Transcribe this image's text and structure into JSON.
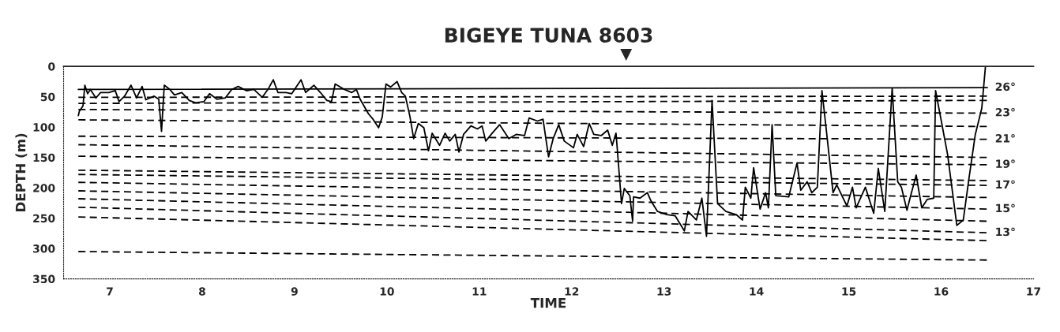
{
  "chart_data": {
    "type": "line",
    "title": "BIGEYE TUNA 8603",
    "xlabel": "TIME",
    "ylabel": "DEPTH (m)",
    "xlim": [
      6.5,
      17
    ],
    "xticks": [
      7,
      8,
      9,
      10,
      11,
      12,
      13,
      14,
      15,
      16,
      17
    ],
    "ylim": [
      350,
      0
    ],
    "yticks": [
      0,
      50,
      100,
      150,
      200,
      250,
      300,
      350
    ],
    "grid": false,
    "legend": false,
    "annotations": [
      "▼"
    ],
    "series": [
      {
        "color": "#000000",
        "line_style": "solid",
        "x": [
          6.66,
          6.67,
          6.71,
          6.73,
          6.76,
          6.79,
          6.85,
          6.9,
          6.99,
          7.06,
          7.1,
          7.16,
          7.23,
          7.29,
          7.35,
          7.39,
          7.48,
          7.53,
          7.56,
          7.59,
          7.65,
          7.7,
          7.78,
          7.86,
          7.93,
          8.02,
          8.08,
          8.16,
          8.25,
          8.32,
          8.39,
          8.48,
          8.56,
          8.65,
          8.72,
          8.77,
          8.82,
          8.91,
          8.97,
          9.07,
          9.12,
          9.21,
          9.28,
          9.35,
          9.4,
          9.44,
          9.54,
          9.62,
          9.67,
          9.71,
          9.8,
          9.85,
          9.91,
          9.95,
          9.99,
          10.04,
          10.11,
          10.16,
          10.2,
          10.25,
          10.29,
          10.34,
          10.4,
          10.45,
          10.49,
          10.57,
          10.63,
          10.68,
          10.74,
          10.78,
          10.83,
          10.91,
          10.98,
          11.03,
          11.07,
          11.14,
          11.22,
          11.32,
          11.4,
          11.49,
          11.54,
          11.63,
          11.69,
          11.75,
          11.8,
          11.86,
          11.92,
          12.02,
          12.06,
          12.13,
          12.19,
          12.24,
          12.32,
          12.39,
          12.44,
          12.48,
          12.49,
          12.54,
          12.57,
          12.63,
          12.66,
          12.67,
          12.74,
          12.82,
          12.86,
          12.93,
          13.03,
          13.12,
          13.22,
          13.26,
          13.35,
          13.41,
          13.46,
          13.52,
          13.58,
          13.67,
          13.78,
          13.85,
          13.88,
          13.94,
          13.97,
          14.04,
          14.1,
          14.13,
          14.17,
          14.21,
          14.35,
          14.44,
          14.48,
          14.55,
          14.6,
          14.66,
          14.71,
          14.77,
          14.83,
          14.87,
          14.98,
          15.04,
          15.08,
          15.18,
          15.27,
          15.32,
          15.39,
          15.47,
          15.53,
          15.57,
          15.63,
          15.67,
          15.73,
          15.79,
          15.85,
          15.92,
          15.94,
          16.07,
          16.17,
          16.24,
          16.3,
          16.37,
          16.44,
          16.48
        ],
        "values": [
          81,
          74,
          65,
          31,
          45,
          38,
          52,
          43,
          43,
          40,
          58,
          49,
          31,
          52,
          33,
          55,
          49,
          54,
          107,
          31,
          38,
          47,
          43,
          56,
          60,
          58,
          45,
          54,
          52,
          38,
          33,
          40,
          38,
          51,
          36,
          22,
          43,
          43,
          45,
          22,
          43,
          31,
          43,
          56,
          58,
          29,
          38,
          43,
          38,
          54,
          78,
          87,
          101,
          83,
          29,
          34,
          25,
          43,
          49,
          83,
          119,
          94,
          101,
          139,
          110,
          130,
          110,
          123,
          112,
          141,
          112,
          98,
          103,
          98,
          123,
          110,
          96,
          119,
          112,
          114,
          85,
          90,
          87,
          149,
          119,
          96,
          123,
          134,
          112,
          132,
          94,
          112,
          114,
          105,
          130,
          110,
          128,
          226,
          201,
          213,
          255,
          215,
          217,
          208,
          222,
          239,
          244,
          246,
          271,
          239,
          253,
          217,
          280,
          56,
          226,
          239,
          244,
          253,
          199,
          217,
          167,
          235,
          208,
          233,
          96,
          213,
          215,
          159,
          204,
          190,
          208,
          199,
          40,
          123,
          208,
          195,
          230,
          199,
          233,
          199,
          242,
          168,
          239,
          36,
          190,
          199,
          237,
          213,
          179,
          233,
          219,
          217,
          40,
          145,
          262,
          253,
          186,
          112,
          69,
          0
        ]
      },
      {
        "name": "26°",
        "color": "#000000",
        "line_style": "solid",
        "x": [
          6.66,
          16.5
        ],
        "values": [
          38,
          35
        ]
      },
      {
        "color": "#000000",
        "line_style": "dashed",
        "x": [
          6.66,
          16.5
        ],
        "values": [
          51,
          49
        ]
      },
      {
        "color": "#000000",
        "line_style": "dashed",
        "x": [
          6.66,
          16.5
        ],
        "values": [
          61,
          56
        ]
      },
      {
        "name": "23°",
        "color": "#000000",
        "line_style": "dashed",
        "x": [
          6.66,
          16.5
        ],
        "values": [
          71,
          77
        ]
      },
      {
        "color": "#000000",
        "line_style": "dashed",
        "x": [
          6.66,
          16.5
        ],
        "values": [
          88,
          99
        ]
      },
      {
        "name": "21°",
        "color": "#000000",
        "line_style": "dashed",
        "x": [
          6.66,
          16.5
        ],
        "values": [
          115,
          120
        ]
      },
      {
        "color": "#000000",
        "line_style": "dashed",
        "x": [
          6.66,
          16.5
        ],
        "values": [
          129,
          150
        ]
      },
      {
        "name": "19°",
        "color": "#000000",
        "line_style": "dashed",
        "x": [
          6.66,
          16.5
        ],
        "values": [
          148,
          162
        ]
      },
      {
        "color": "#000000",
        "line_style": "dashed",
        "x": [
          6.66,
          16.5
        ],
        "values": [
          171,
          188
        ]
      },
      {
        "name": "17°",
        "color": "#000000",
        "line_style": "dashed",
        "x": [
          6.66,
          16.5
        ],
        "values": [
          178,
          196
        ]
      },
      {
        "color": "#000000",
        "line_style": "dashed",
        "x": [
          6.66,
          16.5
        ],
        "values": [
          191,
          216
        ]
      },
      {
        "name": "15°",
        "color": "#000000",
        "line_style": "dashed",
        "x": [
          6.66,
          16.5
        ],
        "values": [
          205,
          235
        ]
      },
      {
        "color": "#000000",
        "line_style": "dashed",
        "x": [
          6.66,
          16.5
        ],
        "values": [
          218,
          255
        ]
      },
      {
        "name": "13°",
        "color": "#000000",
        "line_style": "dashed",
        "x": [
          6.66,
          16.5
        ],
        "values": [
          232,
          274
        ]
      },
      {
        "color": "#000000",
        "line_style": "dashed",
        "x": [
          6.66,
          16.5
        ],
        "values": [
          248,
          287
        ]
      },
      {
        "color": "#000000",
        "line_style": "dashed",
        "x": [
          6.66,
          16.5
        ],
        "values": [
          305,
          319
        ]
      }
    ]
  }
}
